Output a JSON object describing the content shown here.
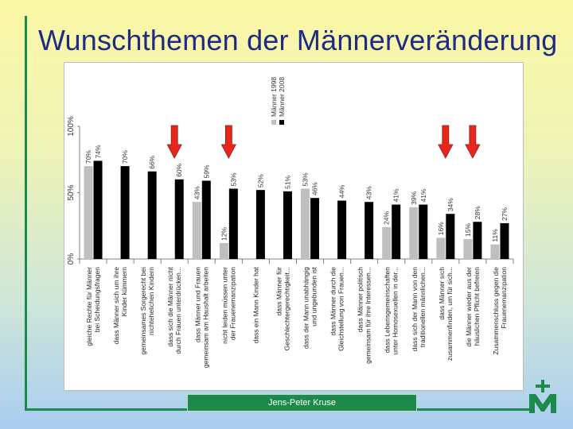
{
  "slide": {
    "title": "Wunschthemen der Männerveränderung",
    "footer": "Jens-Peter Kruse",
    "logo_icon": "cross-m-logo-icon",
    "accent_color": "#1c8a4a",
    "title_color": "#1f2a86"
  },
  "chart_data": {
    "type": "bar",
    "title": "",
    "xlabel": "",
    "ylabel": "",
    "ylim": [
      0,
      100
    ],
    "yticks": [
      "0%",
      "50%",
      "100%"
    ],
    "categories": [
      "gleiche Rechte für Männer bei Scheidungsfragen",
      "dass Männer sich um ihre Kinder kümmern",
      "gemeinsames Sorgerecht bei nichtehelichen Kindern",
      "dass sich die Männer nicht durch Frauen unterdrücken...",
      "dass Männer und Frauen gemeinsam am Haushalt arbeiten",
      "nicht leiden müssen unter der Frauenemanzipation",
      "dass ein Mann Kinder hat",
      "dass Männer für Geschlechtergerechtigkeit...",
      "dass der Mann unabhängig und ungebunden ist",
      "dass Männer durch die Gleichstellung von Frauen...",
      "dass Männer politisch gemeinsam für ihre Interessen...",
      "dass Lebensgemeinschaften unter Homosexuellen in der...",
      "dass sich der Mann von den traditionellen männlichen...",
      "dass Männer sich zusammenfinden, um für sich...",
      "die Männer wieder aus der häuslichen Pflicht befreien",
      "Zusammenschluss gegen die Frauenemanzipation"
    ],
    "series": [
      {
        "name": "Männer 1998",
        "color": "#bfbfbf",
        "values": [
          70,
          null,
          null,
          null,
          43,
          12,
          null,
          null,
          53,
          null,
          null,
          24,
          39,
          16,
          15,
          11
        ]
      },
      {
        "name": "Männer 2008",
        "color": "#000000",
        "values": [
          74,
          70,
          66,
          60,
          59,
          53,
          52,
          51,
          46,
          44,
          43,
          41,
          41,
          34,
          28,
          27
        ]
      }
    ],
    "data_labels": [
      [
        "70%",
        "",
        "",
        "",
        "43%",
        "12%",
        "",
        "",
        "53%",
        "",
        "",
        "24%",
        "39%",
        "16%",
        "15%",
        "11%"
      ],
      [
        "74%",
        "70%",
        "66%",
        "60%",
        "59%",
        "53%",
        "52%",
        "51%",
        "46%",
        "44%",
        "43%",
        "41%",
        "41%",
        "34%",
        "28%",
        "27%"
      ]
    ],
    "highlighted_categories": [
      3,
      5,
      13,
      14
    ],
    "legend_position": "top-right"
  }
}
